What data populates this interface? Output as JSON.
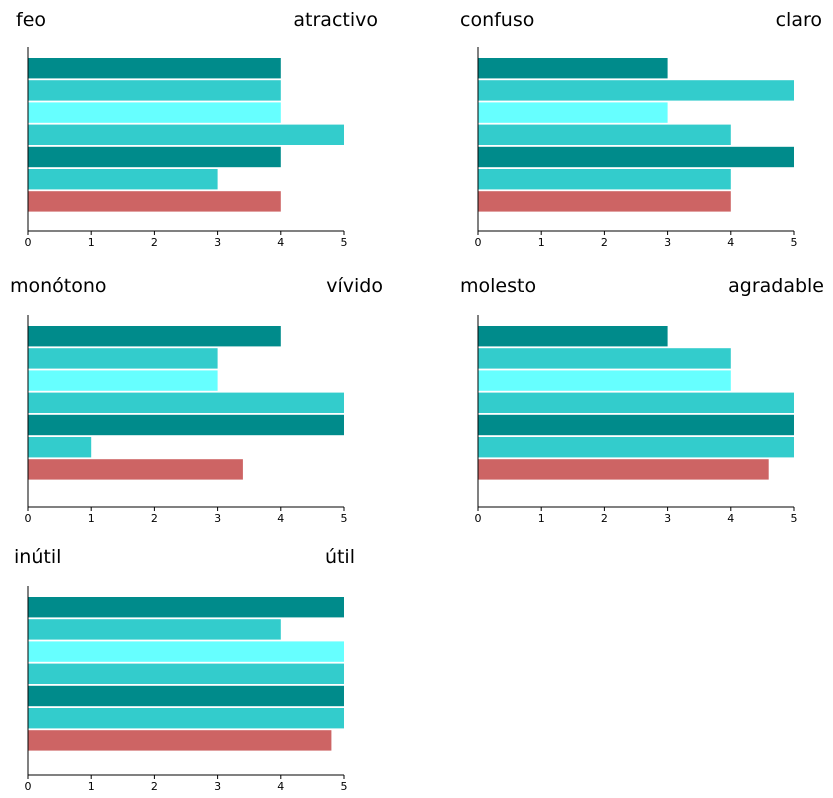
{
  "chart_data": [
    {
      "type": "bar",
      "orientation": "horizontal",
      "left_label": "feo",
      "right_label": "atractivo",
      "xlim": [
        0,
        5
      ],
      "ticks": [
        "0",
        "1",
        "2",
        "3",
        "4",
        "5"
      ],
      "values": [
        4,
        4,
        4,
        5,
        4,
        3,
        4
      ],
      "colors": [
        "#008B8B",
        "#33CCCC",
        "#66FFFF",
        "#33CCCC",
        "#008B8B",
        "#33CCCC",
        "#CD6464"
      ]
    },
    {
      "type": "bar",
      "orientation": "horizontal",
      "left_label": "confuso",
      "right_label": "claro",
      "xlim": [
        0,
        5
      ],
      "ticks": [
        "0",
        "1",
        "2",
        "3",
        "4",
        "5"
      ],
      "values": [
        3,
        5,
        3,
        4,
        5,
        4,
        4
      ],
      "colors": [
        "#008B8B",
        "#33CCCC",
        "#66FFFF",
        "#33CCCC",
        "#008B8B",
        "#33CCCC",
        "#CD6464"
      ]
    },
    {
      "type": "bar",
      "orientation": "horizontal",
      "left_label": "monótono",
      "right_label": "vívido",
      "xlim": [
        0,
        5
      ],
      "ticks": [
        "0",
        "1",
        "2",
        "3",
        "4",
        "5"
      ],
      "values": [
        4,
        3,
        3,
        5,
        5,
        1,
        3.4
      ],
      "colors": [
        "#008B8B",
        "#33CCCC",
        "#66FFFF",
        "#33CCCC",
        "#008B8B",
        "#33CCCC",
        "#CD6464"
      ]
    },
    {
      "type": "bar",
      "orientation": "horizontal",
      "left_label": "molesto",
      "right_label": "agradable",
      "xlim": [
        0,
        5
      ],
      "ticks": [
        "0",
        "1",
        "2",
        "3",
        "4",
        "5"
      ],
      "values": [
        3,
        4,
        4,
        5,
        5,
        5,
        4.6
      ],
      "colors": [
        "#008B8B",
        "#33CCCC",
        "#66FFFF",
        "#33CCCC",
        "#008B8B",
        "#33CCCC",
        "#CD6464"
      ]
    },
    {
      "type": "bar",
      "orientation": "horizontal",
      "left_label": "inútil",
      "right_label": "útil",
      "xlim": [
        0,
        5
      ],
      "ticks": [
        "0",
        "1",
        "2",
        "3",
        "4",
        "5"
      ],
      "values": [
        5,
        4,
        5,
        5,
        5,
        5,
        4.8
      ],
      "colors": [
        "#008B8B",
        "#33CCCC",
        "#66FFFF",
        "#33CCCC",
        "#008B8B",
        "#33CCCC",
        "#CD6464"
      ]
    }
  ]
}
